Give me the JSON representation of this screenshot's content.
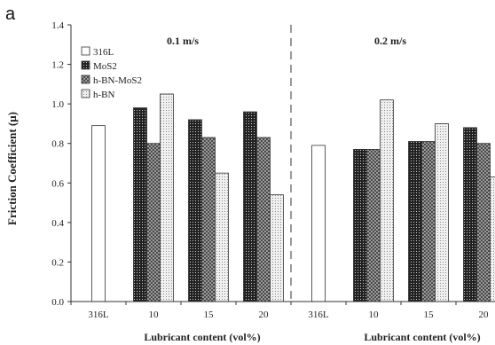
{
  "panel_label": "a",
  "chart_data": {
    "type": "bar",
    "ylabel": "Friction Coefficient (μ)",
    "ylim": [
      0,
      1.4
    ],
    "yticks": [
      "0.0",
      "0.2",
      "0.4",
      "0.6",
      "0.8",
      "1.0",
      "1.2",
      "1.4"
    ],
    "grid": false,
    "legend_position": "top-left",
    "series": [
      {
        "name": "316L",
        "pattern": "white"
      },
      {
        "name": "MoS2",
        "pattern": "black-dots"
      },
      {
        "name": "h-BN-MoS2",
        "pattern": "gray-checker"
      },
      {
        "name": "h-BN",
        "pattern": "light-dots"
      }
    ],
    "panels": [
      {
        "title": "0.1 m/s",
        "xlabel": "Lubricant content (vol%)",
        "categories": [
          {
            "label": "316L",
            "bars": [
              {
                "series": "316L",
                "value": 0.89
              }
            ]
          },
          {
            "label": "10",
            "bars": [
              {
                "series": "MoS2",
                "value": 0.98
              },
              {
                "series": "h-BN-MoS2",
                "value": 0.8
              },
              {
                "series": "h-BN",
                "value": 1.05
              }
            ]
          },
          {
            "label": "15",
            "bars": [
              {
                "series": "MoS2",
                "value": 0.92
              },
              {
                "series": "h-BN-MoS2",
                "value": 0.83
              },
              {
                "series": "h-BN",
                "value": 0.65
              }
            ]
          },
          {
            "label": "20",
            "bars": [
              {
                "series": "MoS2",
                "value": 0.96
              },
              {
                "series": "h-BN-MoS2",
                "value": 0.83
              },
              {
                "series": "h-BN",
                "value": 0.54
              }
            ]
          }
        ]
      },
      {
        "title": "0.2 m/s",
        "xlabel": "Lubricant content (vol%)",
        "categories": [
          {
            "label": "316L",
            "bars": [
              {
                "series": "316L",
                "value": 0.79
              }
            ]
          },
          {
            "label": "10",
            "bars": [
              {
                "series": "MoS2",
                "value": 0.77
              },
              {
                "series": "h-BN-MoS2",
                "value": 0.77
              },
              {
                "series": "h-BN",
                "value": 1.02
              }
            ]
          },
          {
            "label": "15",
            "bars": [
              {
                "series": "MoS2",
                "value": 0.81
              },
              {
                "series": "h-BN-MoS2",
                "value": 0.81
              },
              {
                "series": "h-BN",
                "value": 0.9
              }
            ]
          },
          {
            "label": "20",
            "bars": [
              {
                "series": "MoS2",
                "value": 0.88
              },
              {
                "series": "h-BN-MoS2",
                "value": 0.8
              },
              {
                "series": "h-BN",
                "value": 0.63
              }
            ]
          }
        ]
      }
    ]
  }
}
